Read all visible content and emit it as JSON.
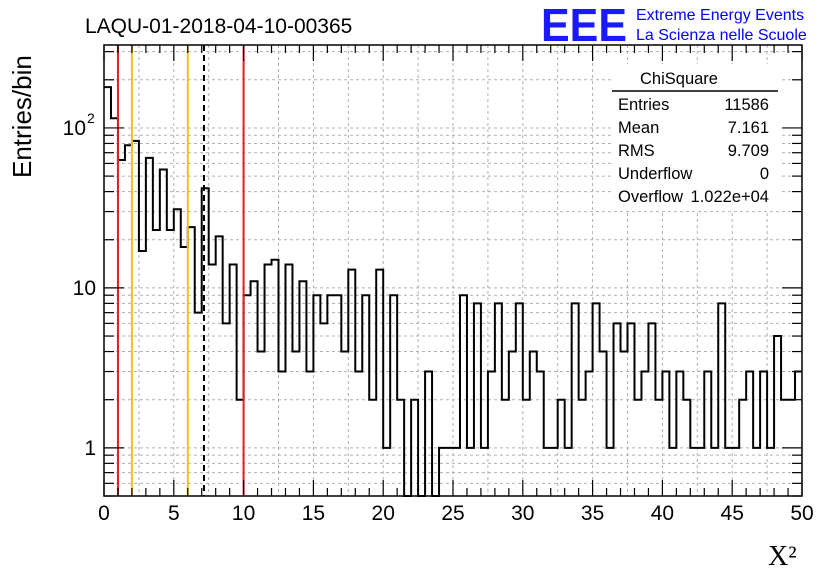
{
  "chart_data": {
    "type": "bar",
    "title": "LAQU-01-2018-04-10-00365",
    "xlabel": "X²",
    "ylabel": "Entries/bin",
    "xlim": [
      0,
      50
    ],
    "ylim": [
      0.5,
      330
    ],
    "y_scale": "log",
    "grid": true,
    "bin_width": 0.5,
    "x_ticks": [
      {
        "value": 0,
        "label": "0"
      },
      {
        "value": 5,
        "label": "5"
      },
      {
        "value": 10,
        "label": "10"
      },
      {
        "value": 15,
        "label": "15"
      },
      {
        "value": 20,
        "label": "20"
      },
      {
        "value": 25,
        "label": "25"
      },
      {
        "value": 30,
        "label": "30"
      },
      {
        "value": 35,
        "label": "35"
      },
      {
        "value": 40,
        "label": "40"
      },
      {
        "value": 45,
        "label": "45"
      },
      {
        "value": 50,
        "label": "50"
      }
    ],
    "y_ticks": [
      {
        "value": 1,
        "base": "1",
        "exp": ""
      },
      {
        "value": 10,
        "base": "10",
        "exp": ""
      },
      {
        "value": 100,
        "base": "10",
        "exp": "2"
      }
    ],
    "values": [
      180,
      115,
      63,
      78,
      83,
      17,
      65,
      23,
      55,
      23,
      31,
      18,
      24,
      7,
      42,
      14,
      21,
      6,
      14,
      2,
      9,
      11,
      4,
      14,
      15,
      3,
      14,
      4,
      11,
      3,
      9,
      6,
      9,
      9,
      4,
      13,
      3,
      9,
      2,
      13,
      1,
      9,
      2,
      0,
      2,
      0,
      3,
      0,
      1,
      1,
      1,
      9,
      1,
      8,
      1,
      3,
      8,
      2,
      4,
      8,
      2,
      4,
      3,
      1,
      1,
      2,
      1,
      8,
      2,
      3,
      8,
      4,
      1,
      6,
      4,
      6,
      2,
      3,
      6,
      2,
      3,
      1,
      3,
      2,
      1,
      1,
      3,
      1,
      8,
      1,
      1,
      2,
      3,
      1,
      3,
      1,
      5,
      2,
      2,
      3
    ],
    "vertical_lines": [
      {
        "x": 1,
        "color": "#e02020",
        "style": "solid"
      },
      {
        "x": 2,
        "color": "#f0c020",
        "style": "solid"
      },
      {
        "x": 6,
        "color": "#f0c020",
        "style": "solid"
      },
      {
        "x": 7.161,
        "color": "#000000",
        "style": "dashed"
      },
      {
        "x": 10,
        "color": "#e02020",
        "style": "solid"
      }
    ],
    "line_color": "#000000",
    "stats_box": {
      "title": "ChiSquare",
      "rows": [
        {
          "label": "Entries",
          "value": "11586"
        },
        {
          "label": "Mean",
          "value": "7.161"
        },
        {
          "label": "RMS",
          "value": "9.709"
        },
        {
          "label": "Underflow",
          "value": "0"
        },
        {
          "label": "Overflow",
          "value": "1.022e+04"
        }
      ]
    }
  },
  "logo": {
    "mark": "EEE",
    "line1": "Extreme Energy Events",
    "line2": "La Scienza nelle Scuole",
    "color": "#0000ff"
  }
}
